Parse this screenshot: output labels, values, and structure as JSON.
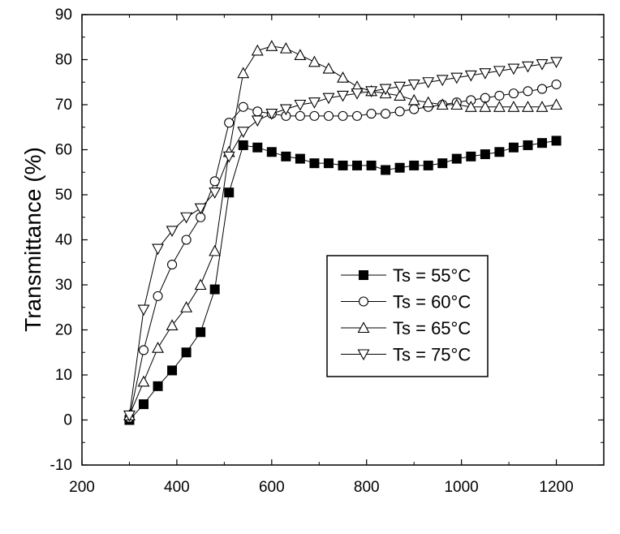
{
  "chart_data": {
    "type": "line",
    "title": "",
    "xlabel": "",
    "ylabel": "Transmittance (%)",
    "xlim": [
      200,
      1300
    ],
    "ylim": [
      -10,
      90
    ],
    "xticks": [
      200,
      400,
      600,
      800,
      1000,
      1200
    ],
    "yticks": [
      -10,
      0,
      10,
      20,
      30,
      40,
      50,
      60,
      70,
      80,
      90
    ],
    "grid": false,
    "legend_position": "center-right",
    "series": [
      {
        "name": "Ts = 55°C",
        "marker": "filled-square",
        "x": [
          300,
          330,
          360,
          390,
          420,
          450,
          480,
          510,
          540,
          570,
          600,
          630,
          660,
          690,
          720,
          750,
          780,
          810,
          840,
          870,
          900,
          930,
          960,
          990,
          1020,
          1050,
          1080,
          1110,
          1140,
          1170,
          1200
        ],
        "values": [
          0,
          3.5,
          7.5,
          11,
          15,
          19.5,
          29,
          50.5,
          61,
          60.5,
          59.5,
          58.5,
          58,
          57,
          57,
          56.5,
          56.5,
          56.5,
          55.5,
          56,
          56.5,
          56.5,
          57,
          58,
          58.5,
          59,
          59.5,
          60.5,
          61,
          61.5,
          62
        ]
      },
      {
        "name": "Ts = 60°C",
        "marker": "open-circle",
        "x": [
          300,
          330,
          360,
          390,
          420,
          450,
          480,
          510,
          540,
          570,
          600,
          630,
          660,
          690,
          720,
          750,
          780,
          810,
          840,
          870,
          900,
          930,
          960,
          990,
          1020,
          1050,
          1080,
          1110,
          1140,
          1170,
          1200
        ],
        "values": [
          0.5,
          15.5,
          27.5,
          34.5,
          40,
          45,
          53,
          66,
          69.5,
          68.5,
          68,
          67.5,
          67.5,
          67.5,
          67.5,
          67.5,
          67.5,
          68,
          68,
          68.5,
          69,
          69.5,
          70,
          70.5,
          71,
          71.5,
          72,
          72.5,
          73,
          73.5,
          74.5
        ]
      },
      {
        "name": "Ts = 65°C",
        "marker": "open-triangle-up",
        "x": [
          300,
          330,
          360,
          390,
          420,
          450,
          480,
          510,
          540,
          570,
          600,
          630,
          660,
          690,
          720,
          750,
          780,
          810,
          840,
          870,
          900,
          930,
          960,
          990,
          1020,
          1050,
          1080,
          1110,
          1140,
          1170,
          1200
        ],
        "values": [
          1,
          8.5,
          16,
          21,
          25,
          30,
          37.5,
          59.5,
          77,
          82,
          83,
          82.5,
          81,
          79.5,
          78,
          76,
          74,
          73,
          72.5,
          72,
          71,
          70.5,
          70,
          70,
          69.5,
          69.5,
          69.5,
          69.5,
          69.5,
          69.5,
          70
        ]
      },
      {
        "name": "Ts = 75°C",
        "marker": "open-triangle-down",
        "x": [
          300,
          330,
          360,
          390,
          420,
          450,
          480,
          510,
          540,
          570,
          600,
          630,
          660,
          690,
          720,
          750,
          780,
          810,
          840,
          870,
          900,
          930,
          960,
          990,
          1020,
          1050,
          1080,
          1110,
          1140,
          1170,
          1200
        ],
        "values": [
          1,
          24.5,
          38,
          42,
          45,
          47,
          50.5,
          58.5,
          64,
          66.5,
          68,
          69,
          70,
          70.5,
          71.5,
          72,
          72.5,
          73,
          73.5,
          74,
          74.5,
          75,
          75.5,
          76,
          76.5,
          77,
          77.5,
          78,
          78.5,
          79,
          79.5
        ]
      }
    ]
  }
}
